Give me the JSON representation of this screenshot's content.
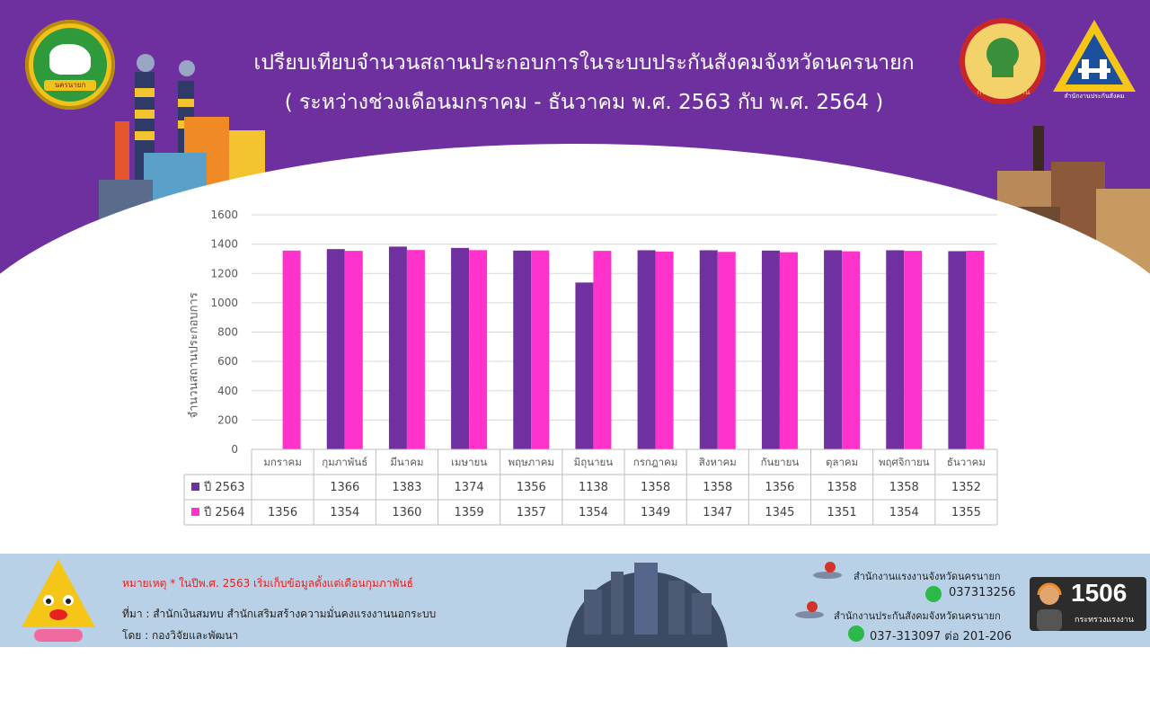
{
  "header": {
    "title_line1": "เปรียบเทียบจำนวนสถานประกอบการในระบบประกันสังคมจังหวัดนครนายก",
    "title_line2": "( ระหว่างช่วงเดือนมกราคม - ธันวาคม พ.ศ. 2563 กับ พ.ศ. 2564 )",
    "logo_left_text": "นครนายก",
    "logo_mol_text": "กระทรวงแรงงาน",
    "logo_sso_text": "สำนักงานประกันสังคม"
  },
  "colors": {
    "background_purple": "#6e309f",
    "series_2563": "#7030a0",
    "series_2564": "#ff33cc"
  },
  "chart_data": {
    "type": "bar",
    "title": "",
    "ylabel": "จำนวนสถานประกอบการ",
    "xlabel": "",
    "ylim": [
      0,
      1600
    ],
    "yticks": [
      "0",
      "200",
      "400",
      "600",
      "800",
      "1000",
      "1200",
      "1400",
      "1600"
    ],
    "grid": true,
    "legend": "data-table",
    "categories": [
      "มกราคม",
      "กุมภาพันธ์",
      "มีนาคม",
      "เมษายน",
      "พฤษภาคม",
      "มิถุนายน",
      "กรกฎาคม",
      "สิงหาคม",
      "กันยายน",
      "ตุลาคม",
      "พฤศจิกายน",
      "ธันวาคม"
    ],
    "series": [
      {
        "name": "ปี 2563",
        "values": [
          null,
          1366,
          1383,
          1374,
          1356,
          1138,
          1358,
          1358,
          1356,
          1358,
          1358,
          1352
        ]
      },
      {
        "name": "ปี 2564",
        "values": [
          1356,
          1354,
          1360,
          1359,
          1357,
          1354,
          1349,
          1347,
          1345,
          1351,
          1354,
          1355
        ]
      }
    ]
  },
  "footer": {
    "note": "หมายเหตุ * ในปีพ.ศ. 2563 เริ่มเก็บข้อมูลตั้งแต่เดือนกุมภาพันธ์",
    "source": "ที่มา : สำนักเงินสมทบ  สำนักเสริมสร้างความมั่นคงแรงงานนอกระบบ",
    "by": "โดย : กองวิจัยและพัฒนา",
    "office1": "สำนักงานแรงงานจังหวัดนครนายก",
    "phone1": "037313256",
    "office2": "สำนักงานประกันสังคมจังหวัดนครนายก",
    "phone2": "037-313097 ต่อ 201-206",
    "hotline_number": "1506",
    "hotline_sub": "กระทรวงแรงงาน"
  }
}
